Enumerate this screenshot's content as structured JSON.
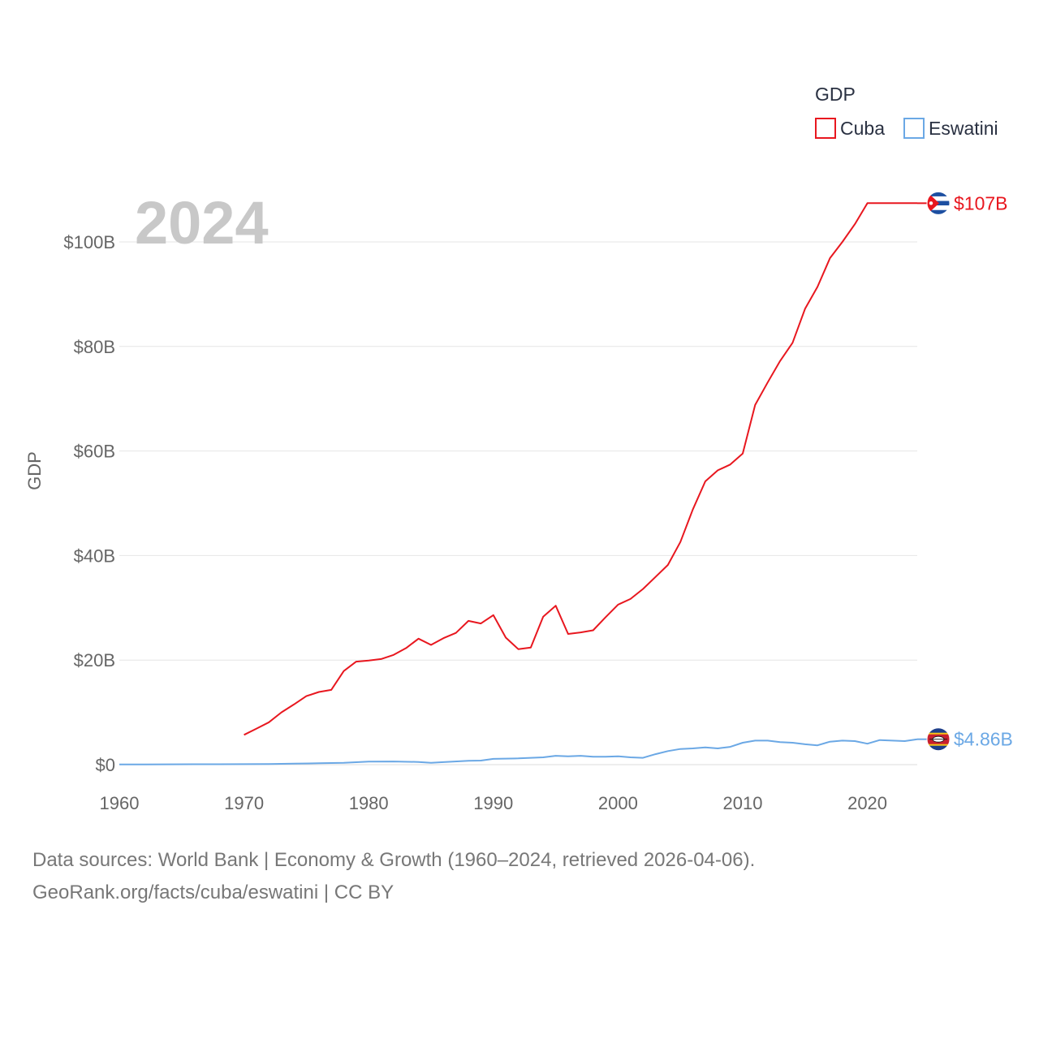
{
  "chart_data": {
    "type": "line",
    "title": "",
    "year_label": "2024",
    "xlabel": "",
    "ylabel": "GDP",
    "xlim": [
      1960,
      2024
    ],
    "ylim": [
      0,
      110
    ],
    "y_unit": "billions USD",
    "x_ticks": [
      1960,
      1970,
      1980,
      1990,
      2000,
      2010,
      2020
    ],
    "y_ticks": [
      0,
      20,
      40,
      60,
      80,
      100
    ],
    "y_tick_labels": [
      "$0",
      "$20B",
      "$40B",
      "$60B",
      "$80B",
      "$100B"
    ],
    "legend": {
      "title": "GDP",
      "position": "top-right"
    },
    "grid": true,
    "series": [
      {
        "name": "Cuba",
        "color": "#e8171f",
        "end_label": "$107B",
        "flag_icon": "cuba-flag-icon",
        "x": [
          1970,
          1971,
          1972,
          1973,
          1974,
          1975,
          1976,
          1977,
          1978,
          1979,
          1980,
          1981,
          1982,
          1983,
          1984,
          1985,
          1986,
          1987,
          1988,
          1989,
          1990,
          1991,
          1992,
          1993,
          1994,
          1995,
          1996,
          1997,
          1998,
          1999,
          2000,
          2001,
          2002,
          2003,
          2004,
          2005,
          2006,
          2007,
          2008,
          2009,
          2010,
          2011,
          2012,
          2013,
          2014,
          2015,
          2016,
          2017,
          2018,
          2019,
          2020,
          2021,
          2022,
          2023,
          2024
        ],
        "y": [
          5.7,
          6.9,
          8.1,
          10.0,
          11.5,
          13.1,
          13.9,
          14.3,
          17.9,
          19.7,
          19.9,
          20.2,
          21.0,
          22.3,
          24.1,
          22.9,
          24.2,
          25.2,
          27.5,
          27.0,
          28.6,
          24.3,
          22.1,
          22.4,
          28.3,
          30.4,
          25.0,
          25.3,
          25.7,
          28.2,
          30.6,
          31.7,
          33.6,
          35.9,
          38.2,
          42.6,
          48.8,
          54.2,
          56.3,
          57.4,
          59.5,
          68.8,
          73.1,
          77.2,
          80.7,
          87.2,
          91.4,
          96.9,
          100.0,
          103.4,
          107.4,
          107.4,
          107.4,
          107.4,
          107.4
        ]
      },
      {
        "name": "Eswatini",
        "color": "#6ba8e5",
        "end_label": "$4.86B",
        "flag_icon": "eswatini-flag-icon",
        "x": [
          1960,
          1962,
          1964,
          1966,
          1968,
          1970,
          1972,
          1974,
          1976,
          1978,
          1980,
          1982,
          1984,
          1985,
          1986,
          1988,
          1989,
          1990,
          1992,
          1994,
          1995,
          1996,
          1997,
          1998,
          1999,
          2000,
          2001,
          2002,
          2003,
          2004,
          2005,
          2006,
          2007,
          2008,
          2009,
          2010,
          2011,
          2012,
          2013,
          2014,
          2015,
          2016,
          2017,
          2018,
          2019,
          2020,
          2021,
          2022,
          2023,
          2024
        ],
        "y": [
          0.03,
          0.04,
          0.06,
          0.07,
          0.08,
          0.1,
          0.12,
          0.2,
          0.27,
          0.35,
          0.58,
          0.6,
          0.52,
          0.36,
          0.48,
          0.75,
          0.78,
          1.1,
          1.2,
          1.4,
          1.7,
          1.6,
          1.7,
          1.5,
          1.5,
          1.6,
          1.4,
          1.3,
          2.0,
          2.6,
          3.0,
          3.1,
          3.3,
          3.1,
          3.4,
          4.2,
          4.6,
          4.6,
          4.3,
          4.2,
          3.9,
          3.7,
          4.4,
          4.6,
          4.5,
          4.0,
          4.7,
          4.6,
          4.5,
          4.86
        ]
      }
    ]
  },
  "footer": {
    "line1": "Data sources: World Bank | Economy & Growth (1960–2024, retrieved 2026-04-06).",
    "line2": "GeoRank.org/facts/cuba/eswatini | CC BY"
  }
}
